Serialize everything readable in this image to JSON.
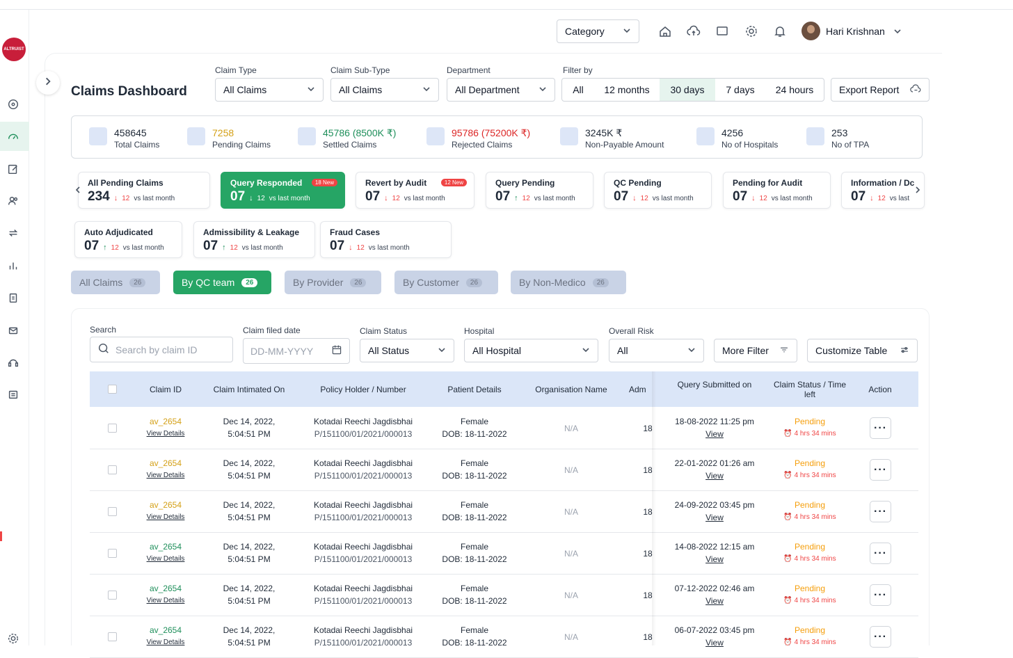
{
  "header": {
    "category": "Category",
    "user_name": "Hari Krishnan",
    "logo_text": "ALTRUIST"
  },
  "page": {
    "title": "Claims Dashboard"
  },
  "filters": {
    "claim_type": {
      "label": "Claim Type",
      "value": "All Claims"
    },
    "claim_sub_type": {
      "label": "Claim Sub-Type",
      "value": "All Claims"
    },
    "department": {
      "label": "Department",
      "value": "All Department"
    },
    "filter_by": {
      "label": "Filter by",
      "options": [
        "All",
        "12 months",
        "30 days",
        "7 days",
        "24 hours"
      ],
      "selected": "30 days"
    },
    "export": "Export Report"
  },
  "stats": [
    {
      "value": "458645",
      "label": "Total Claims",
      "color": "#1f2937"
    },
    {
      "value": "7258",
      "label": "Pending Claims",
      "color": "#d4a017"
    },
    {
      "value": "45786 (8500K ₹)",
      "label": "Settled Claims",
      "color": "#1f8f5b"
    },
    {
      "value": "95786 (75200K ₹)",
      "label": "Rejected Claims",
      "color": "#dc2626"
    },
    {
      "value": "3245K ₹",
      "label": "Non-Payable Amount",
      "color": "#1f2937"
    },
    {
      "value": "4256",
      "label": "No of Hospitals",
      "color": "#1f2937"
    },
    {
      "value": "253",
      "label": "No of TPA",
      "color": "#1f2937"
    }
  ],
  "status_cards": [
    {
      "title": "All Pending Claims",
      "value": "234",
      "arrow": "↓",
      "delta": "12",
      "note": "vs last month"
    },
    {
      "title": "Query Responded",
      "value": "07",
      "arrow": "↓",
      "delta": "12",
      "note": "vs last month",
      "badge": "18 New"
    },
    {
      "title": "Revert by Audit",
      "value": "07",
      "arrow": "↓",
      "delta": "12",
      "note": "vs last month",
      "badge": "12 New"
    },
    {
      "title": "Query Pending",
      "value": "07",
      "arrow": "↑",
      "delta": "12",
      "note": "vs last month"
    },
    {
      "title": "QC Pending",
      "value": "07",
      "arrow": "↓",
      "delta": "12",
      "note": "vs last month"
    },
    {
      "title": "Pending for Audit",
      "value": "07",
      "arrow": "↓",
      "delta": "12",
      "note": "vs last month"
    },
    {
      "title": "Information / Dc",
      "value": "07",
      "arrow": "↓",
      "delta": "12",
      "note": "vs last"
    },
    {
      "title": "Auto Adjudicated",
      "value": "07",
      "arrow": "↑",
      "delta": "12",
      "note": "vs last month"
    },
    {
      "title": "Admissibility & Leakage",
      "value": "07",
      "arrow": "↑",
      "delta": "12",
      "note": "vs last month"
    },
    {
      "title": "Fraud Cases",
      "value": "07",
      "arrow": "↓",
      "delta": "12",
      "note": "vs last month"
    }
  ],
  "group_tabs": [
    {
      "label": "All Claims",
      "count": "26"
    },
    {
      "label": "By QC team",
      "count": "26"
    },
    {
      "label": "By Provider",
      "count": "26"
    },
    {
      "label": "By Customer",
      "count": "26"
    },
    {
      "label": "By Non-Medico",
      "count": "26"
    }
  ],
  "table_filters": {
    "search": {
      "label": "Search",
      "placeholder": "Search by claim ID"
    },
    "date": {
      "label": "Claim filed date",
      "placeholder": "DD-MM-YYYY"
    },
    "status": {
      "label": "Claim Status",
      "value": "All Status"
    },
    "hospital": {
      "label": "Hospital",
      "value": "All Hospital"
    },
    "risk": {
      "label": "Overall Risk",
      "value": "All"
    },
    "more_filter": "More Filter",
    "customize": "Customize Table"
  },
  "table": {
    "columns": [
      "Claim ID",
      "Claim Intimated On",
      "Policy Holder / Number",
      "Patient Details",
      "Organisation Name",
      "Adm",
      "Query Submitted on",
      "Claim Status / Time left",
      "Action"
    ],
    "view_details": "View Details",
    "view": "View",
    "rows": [
      {
        "id": "av_2654",
        "date": "Dec 14, 2022,",
        "time": "5:04:51 PM",
        "holder": "Kotadai Reechi Jagdisbhai",
        "policy": "P/151100/01/2021/000013",
        "gender": "Female",
        "dob": "DOB: 18-11-2022",
        "org": "N/A",
        "adm": "18",
        "query": "18-08-2022 11:25 pm",
        "status": "Pending",
        "time_left": "4 hrs 34 mins"
      },
      {
        "id": "av_2654",
        "date": "Dec 14, 2022,",
        "time": "5:04:51 PM",
        "holder": "Kotadai Reechi Jagdisbhai",
        "policy": "P/151100/01/2021/000013",
        "gender": "Female",
        "dob": "DOB: 18-11-2022",
        "org": "N/A",
        "adm": "18",
        "query": "22-01-2022 01:26 am",
        "status": "Pending",
        "time_left": "4 hrs 34 mins"
      },
      {
        "id": "av_2654",
        "date": "Dec 14, 2022,",
        "time": "5:04:51 PM",
        "holder": "Kotadai Reechi Jagdisbhai",
        "policy": "P/151100/01/2021/000013",
        "gender": "Female",
        "dob": "DOB: 18-11-2022",
        "org": "N/A",
        "adm": "18",
        "query": "24-09-2022 03:45 pm",
        "status": "Pending",
        "time_left": "4 hrs 34 mins"
      },
      {
        "id": "av_2654",
        "date": "Dec 14, 2022,",
        "time": "5:04:51 PM",
        "holder": "Kotadai Reechi Jagdisbhai",
        "policy": "P/151100/01/2021/000013",
        "gender": "Female",
        "dob": "DOB: 18-11-2022",
        "org": "N/A",
        "adm": "18",
        "query": "14-08-2022 12:15 am",
        "status": "Pending",
        "time_left": "4 hrs 34 mins"
      },
      {
        "id": "av_2654",
        "date": "Dec 14, 2022,",
        "time": "5:04:51 PM",
        "holder": "Kotadai Reechi Jagdisbhai",
        "policy": "P/151100/01/2021/000013",
        "gender": "Female",
        "dob": "DOB: 18-11-2022",
        "org": "N/A",
        "adm": "18",
        "query": "07-12-2022 02:46 am",
        "status": "Pending",
        "time_left": "4 hrs 34 mins"
      },
      {
        "id": "av_2654",
        "date": "Dec 14, 2022,",
        "time": "5:04:51 PM",
        "holder": "Kotadai Reechi Jagdisbhai",
        "policy": "P/151100/01/2021/000013",
        "gender": "Female",
        "dob": "DOB: 18-11-2022",
        "org": "N/A",
        "adm": "18",
        "query": "06-07-2022 03:45 pm",
        "status": "Pending",
        "time_left": "4 hrs 34 mins"
      }
    ]
  },
  "colors": {
    "accent": "#26a565",
    "header_bg": "#dbe6f8",
    "pending": "#f59e0b",
    "alert": "#ef4444"
  }
}
